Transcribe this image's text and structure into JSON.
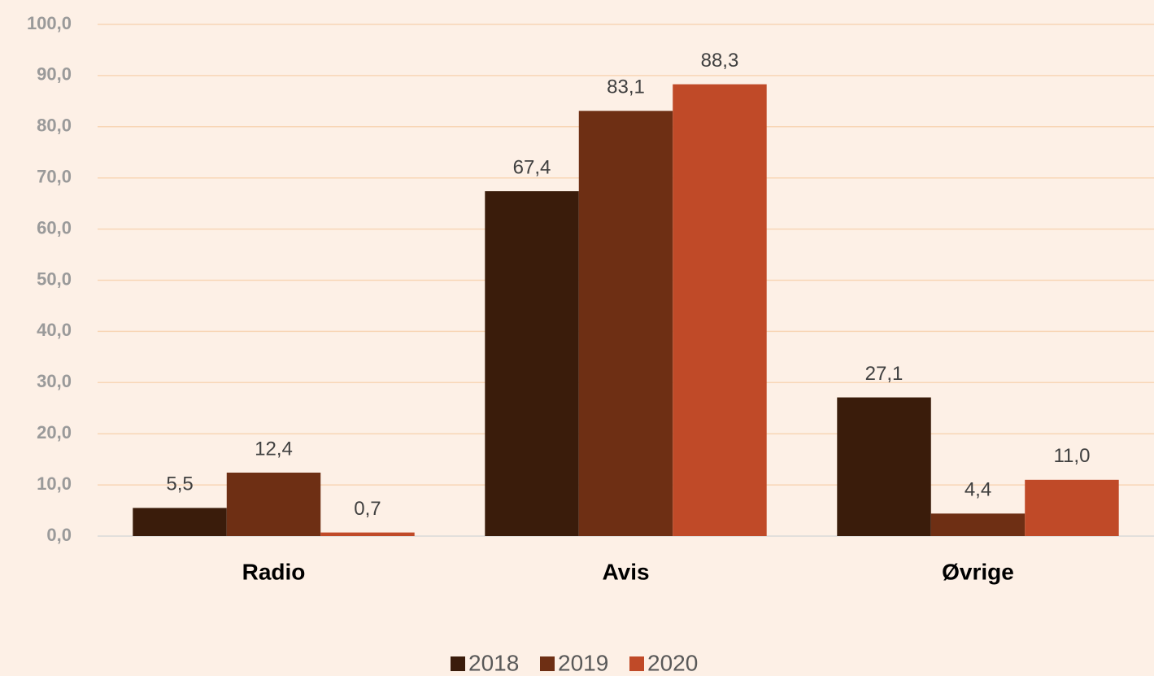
{
  "chart_data": {
    "type": "bar",
    "categories": [
      "Radio",
      "Avis",
      "Øvrige"
    ],
    "series": [
      {
        "name": "2018",
        "color": "#3a1c0b",
        "values": [
          5.5,
          67.4,
          27.1
        ],
        "value_labels": [
          "5,5",
          "67,4",
          "27,1"
        ]
      },
      {
        "name": "2019",
        "color": "#6e2f14",
        "values": [
          12.4,
          83.1,
          4.4
        ],
        "value_labels": [
          "12,4",
          "83,1",
          "4,4"
        ]
      },
      {
        "name": "2020",
        "color": "#c04a28",
        "values": [
          0.7,
          88.3,
          11.0
        ],
        "value_labels": [
          "0,7",
          "88,3",
          "11,0"
        ]
      }
    ],
    "ylim": [
      0,
      100
    ],
    "yticks": [
      {
        "value": 0,
        "label": "0,0"
      },
      {
        "value": 10,
        "label": "10,0"
      },
      {
        "value": 20,
        "label": "20,0"
      },
      {
        "value": 30,
        "label": "30,0"
      },
      {
        "value": 40,
        "label": "40,0"
      },
      {
        "value": 50,
        "label": "50,0"
      },
      {
        "value": 60,
        "label": "60,0"
      },
      {
        "value": 70,
        "label": "70,0"
      },
      {
        "value": 80,
        "label": "80,0"
      },
      {
        "value": 90,
        "label": "90,0"
      },
      {
        "value": 100,
        "label": "100,0"
      }
    ],
    "grid": true,
    "legend": "bottom"
  }
}
